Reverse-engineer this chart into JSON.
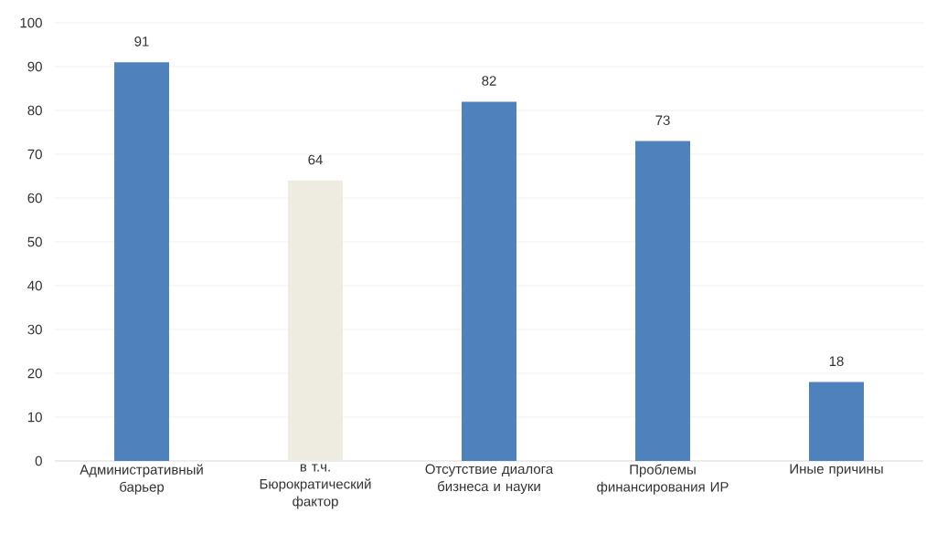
{
  "chart_data": {
    "type": "bar",
    "categories": [
      "Административный барьер",
      "в т.ч. Бюрократический фактор",
      "Отсутствие диалога бизнеса и науки",
      "Проблемы финансирования ИР",
      "Иные причины"
    ],
    "values": [
      91,
      64,
      82,
      73,
      18
    ],
    "colors": [
      "#4f81bd",
      "#eeece1",
      "#4f81bd",
      "#4f81bd",
      "#4f81bd"
    ],
    "ylim": [
      0,
      100
    ],
    "yticks": [
      0,
      10,
      20,
      30,
      40,
      50,
      60,
      70,
      80,
      90,
      100
    ],
    "grid": "y",
    "data_labels": true
  }
}
